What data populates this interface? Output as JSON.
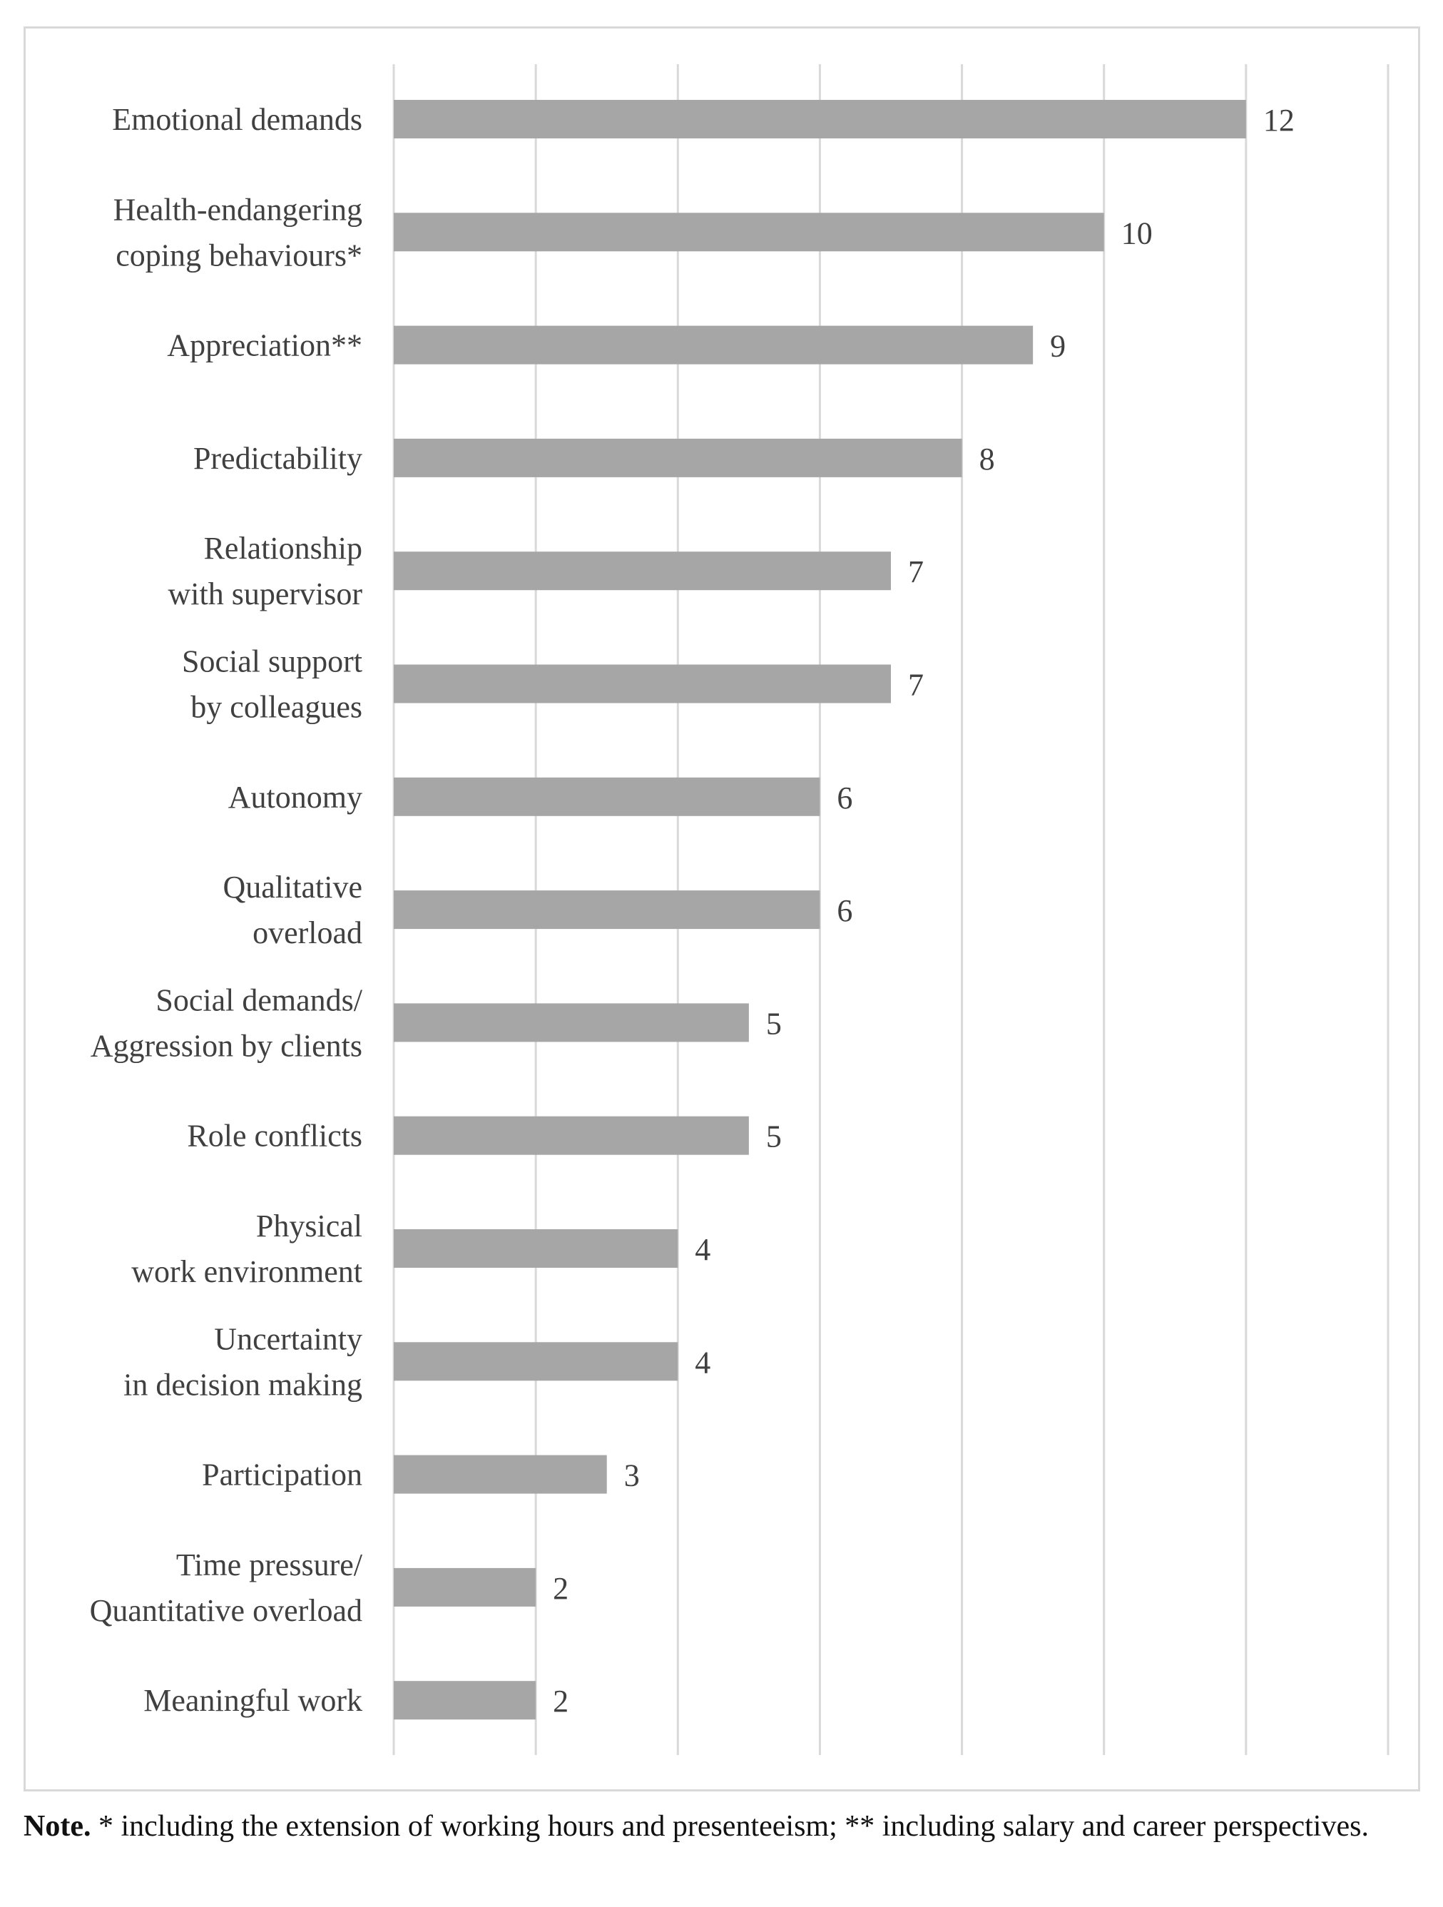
{
  "chart_data": {
    "type": "bar",
    "orientation": "horizontal",
    "title": "",
    "xlabel": "",
    "ylabel": "",
    "xlim": [
      0,
      14
    ],
    "grid": true,
    "categories": [
      [
        "Emotional demands"
      ],
      [
        "Health-endangering",
        "coping behaviours*"
      ],
      [
        "Appreciation**"
      ],
      [
        "Predictability"
      ],
      [
        "Relationship",
        "with supervisor"
      ],
      [
        "Social support",
        "by colleagues"
      ],
      [
        "Autonomy"
      ],
      [
        "Qualitative",
        "overload"
      ],
      [
        "Social demands/",
        "Aggression by clients"
      ],
      [
        "Role conflicts"
      ],
      [
        "Physical",
        "work environment"
      ],
      [
        "Uncertainty",
        "in decision making"
      ],
      [
        "Participation"
      ],
      [
        "Time pressure/",
        "Quantitative overload"
      ],
      [
        "Meaningful work"
      ]
    ],
    "values": [
      12,
      10,
      9,
      8,
      7,
      7,
      6,
      6,
      5,
      5,
      4,
      4,
      3,
      2,
      2
    ],
    "colors": {
      "bar": "#a6a6a6",
      "grid": "#d9d9d9",
      "text": "#404040"
    }
  },
  "note": {
    "label": "Note.",
    "text": " * including the extension of working hours and presenteeism; ** including salary and career perspectives."
  }
}
